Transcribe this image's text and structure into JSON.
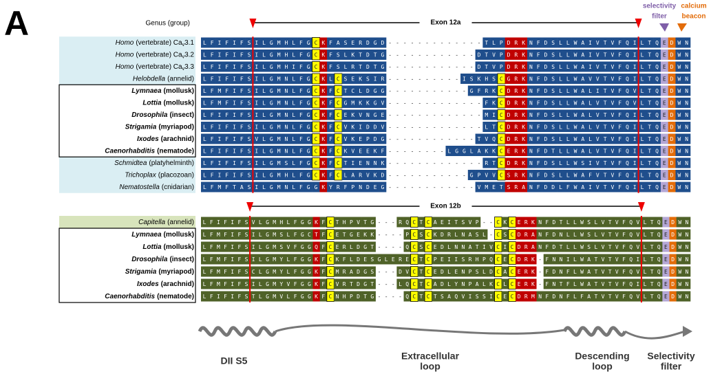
{
  "panel_label": "A",
  "header": {
    "genus_group": "Genus (group)",
    "selectivity_filter": [
      "selectivity",
      "filter"
    ],
    "calcium_beacon": [
      "calcium",
      "beacon"
    ]
  },
  "alignments": [
    {
      "exon": "Exon 12a",
      "color": "#1f4e8c",
      "rows": [
        {
          "genus": "Homo",
          "group": "(vertebrate) Ca",
          "sub": "v",
          "suffix": "3.1",
          "bold": false,
          "sequence": "LFIFIFSILGMHLFGCKFASERDGD-------------TLPDRKNFDSLLWAIVTVFQILTQEDWN"
        },
        {
          "genus": "Homo",
          "group": "(vertebrate) Ca",
          "sub": "v",
          "suffix": "3.2",
          "bold": false,
          "sequence": "LFIFIFSILGMHLFGCKFSLKTDTG------------DTVPDRKNFDSLLWAIVTVFQILTQEDWN"
        },
        {
          "genus": "Homo",
          "group": "(vertebrate) Ca",
          "sub": "v",
          "suffix": "3.3",
          "bold": false,
          "sequence": "LFIFIFSILGMHIFGCKFSLRTDTG------------DTVPDRKNFDSLLWAIVTVFQILTQEDWN"
        },
        {
          "genus": "Helobdella",
          "group": "(annelid)",
          "bold": false,
          "sequence": "LFIFIFSILGMNLFGCKLCSEKSIR----------ISKHSCGRKNFDSLLWAVVTVFQILTQEDWN"
        },
        {
          "genus": "Lymnaea",
          "group": "(mollusk)",
          "bold": true,
          "sequence": "LFMFIFSILGMNLFGCKFCTCLDGG-----------GFRKCDRKNFDSLLWALITVFQVLTQEDWN"
        },
        {
          "genus": "Lottia",
          "group": "(mollusk)",
          "bold": true,
          "sequence": "LFMFIFSILGMNLFGCKFCGMKKGV-------------FKCDRKNFDSLLWALVTVFQVLTQEDWN"
        },
        {
          "genus": "Drosophila",
          "group": "(insect)",
          "bold": true,
          "sequence": "LFIFIFSILGMNLFGCKFCEKVNGE-------------MICDRKNFDSLLWALVTVFQILTQEDWN"
        },
        {
          "genus": "Strigamia",
          "group": "(myriapod)",
          "bold": true,
          "sequence": "LFIFIFSILGMNLFGCKFCVKIDDV-------------LTCDRKNFDSLLWALVTVFQILTQEDWN"
        },
        {
          "genus": "Ixodes",
          "group": "(arachnid)",
          "bold": true,
          "sequence": "LFIFIFSVLGMNLFGCKFCVKEPDG------------TVQCDRKNFDSLLWALVTVFQILTQEDWN"
        },
        {
          "genus": "Caenorhabditis",
          "group": "(nematode)",
          "bold": true,
          "sequence": "LFIFIFSILGMNLFGCKFCKVEEKF--------LGGLAKKCERKNFDTLLWALVTVFQILTQEDWN"
        },
        {
          "genus": "Schmidtea",
          "group": "(platyhelminth)",
          "bold": false,
          "sequence": "LFIFIFSILGMSLFGCKFCTIENNK-------------RTCDRKNFDSLLWSIVTVFQILTQEDWN"
        },
        {
          "genus": "Trichoplax",
          "group": "(placozoan)",
          "bold": false,
          "sequence": "LFIFIFSILGMHLFGCKFCLARVKD-----------GPVVCSRKNFDSLLWAFVTVFQILTQEDWN"
        },
        {
          "genus": "Nematostella",
          "group": "(cnidarian)",
          "bold": false,
          "sequence": "LFMFTASILGMNLFGGKYRFPNDEG------------VMETSRANFDDLFWAIVTVFQILTQEDWN"
        }
      ]
    },
    {
      "exon": "Exon 12b",
      "color": "#4f6228",
      "rows": [
        {
          "genus": "Capitella",
          "group": "(annelid)",
          "bold": false,
          "sequence": "LFIFIFSVLGMHLFGGKFCTHPVTG---RQCTCAEITSVP--CKCERKNFDTLLWSLVTVFQVLTQEDWN"
        },
        {
          "genus": "Lymnaea",
          "group": "(mollusk)",
          "bold": true,
          "sequence": "LFMFIFSILGMSLFGCTFCETGEKK----PCSCKDRLNASL-CSCDRANFDNLLWSLVTVFQVLTQEDWN"
        },
        {
          "genus": "Lottia",
          "group": "(mollusk)",
          "bold": true,
          "sequence": "LFMFIFSILGMSVFGGQFCERLDGT----QCSCEDLNNATIVCICDRANFDTLLWSLVTVFQVLTQEDWN"
        },
        {
          "genus": "Drosophila",
          "group": "(insect)",
          "bold": true,
          "sequence": "LFMFIFSILGMYLFGGKFCKFLDESGLERECTCPEIISRHPQCECDRK-FNNILWATVTVFQILTQEDWN"
        },
        {
          "genus": "Strigamia",
          "group": "(myriapod)",
          "bold": true,
          "sequence": "LFMFIFSCLGMYLFGGKFCMRADGS---DVCTCEDLENPSLDCACERK-FDNFLWATVTVFQVLTQEDWN"
        },
        {
          "genus": "Ixodes",
          "group": "(arachnid)",
          "bold": true,
          "sequence": "LFMFIFSILGMYVFGGKFCVRTDGT---LQCTCADLYNPALKCLCERK-FNTFLWATVTVFQILTQEDWN"
        },
        {
          "genus": "Caenorhabditis",
          "group": "(nematode)",
          "bold": true,
          "sequence": "LFIFIFSTLGMVLFGGKFCNHPDTG----QCTCTSAQVISSICECDRMNFDNFLFATVTVFQVLTQEDWN"
        }
      ]
    }
  ],
  "structure": {
    "labels": [
      [
        "DII S5"
      ],
      [
        "Extracellular",
        "loop"
      ],
      [
        "Descending",
        "loop"
      ],
      [
        "Selectivity",
        "filter"
      ]
    ]
  }
}
